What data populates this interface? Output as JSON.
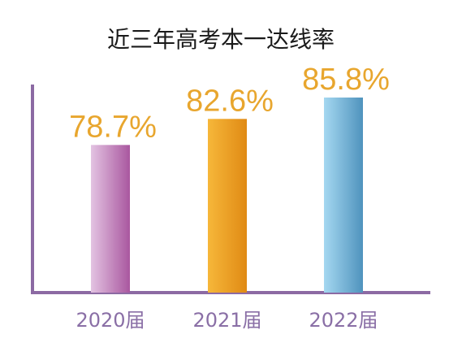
{
  "chart_data": {
    "type": "bar",
    "title": "近三年高考本一达线率",
    "categories": [
      "2020届",
      "2021届",
      "2022届"
    ],
    "values": [
      78.7,
      82.6,
      85.8
    ],
    "value_labels": [
      "78.7%",
      "82.6%",
      "85.8%"
    ],
    "unit": "%",
    "xlabel": "",
    "ylabel": "",
    "grid": false,
    "legend": "none",
    "colors": {
      "axis": "#8c6aa3",
      "label": "#e8a62e",
      "tick_label": "#8a6fa6",
      "bars": [
        {
          "light": "#e3c3e2",
          "dark": "#a9579f"
        },
        {
          "light": "#f6b73a",
          "dark": "#e08a14"
        },
        {
          "light": "#a5d8f1",
          "dark": "#4f93bd"
        }
      ]
    }
  }
}
